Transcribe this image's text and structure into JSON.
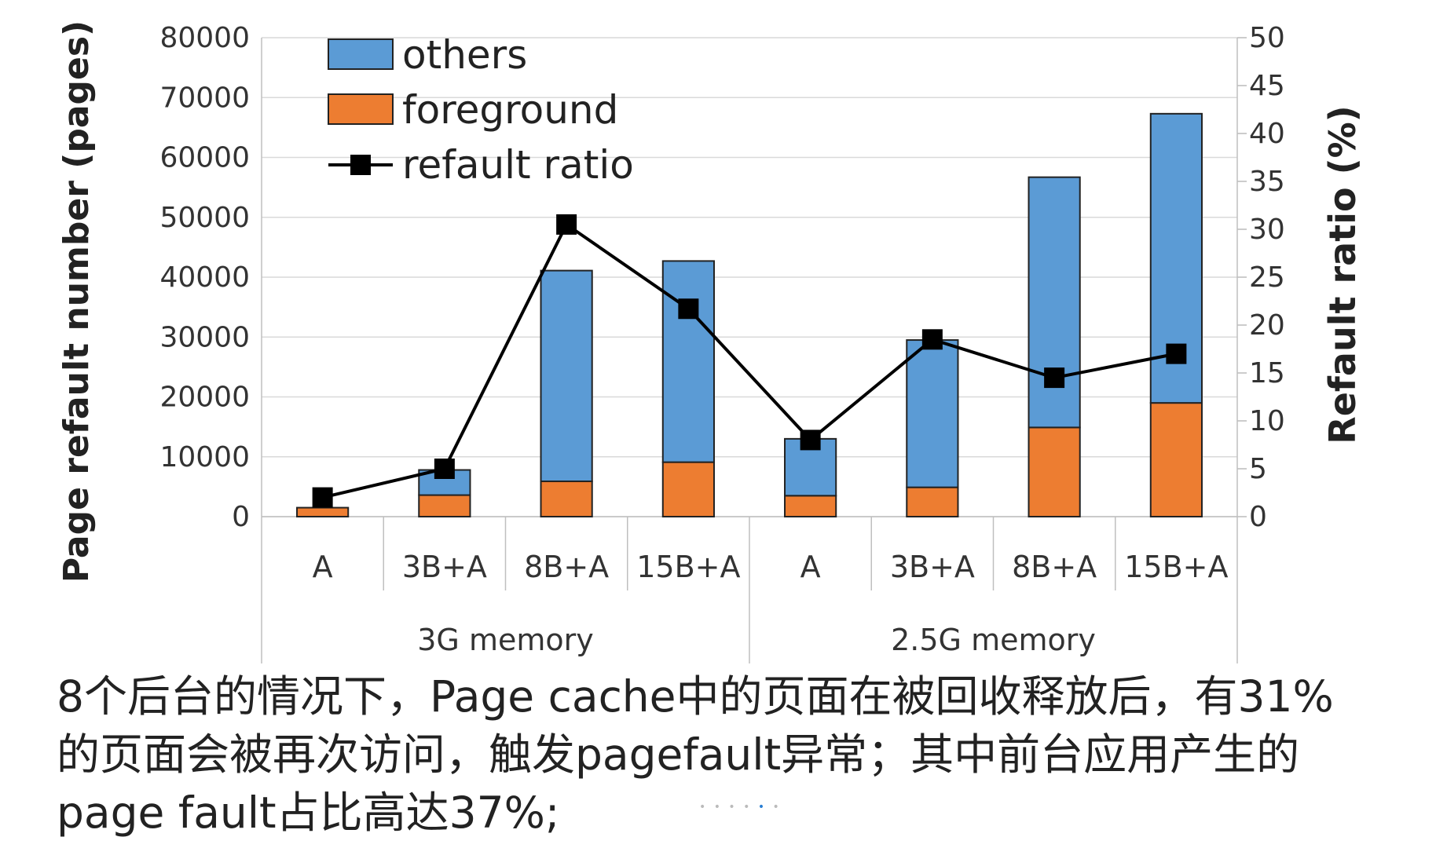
{
  "chart_data": {
    "type": "bar",
    "stacked": true,
    "categories": [
      "A",
      "3B+A",
      "8B+A",
      "15B+A",
      "A",
      "3B+A",
      "8B+A",
      "15B+A"
    ],
    "groups": [
      {
        "label": "3G memory",
        "count": 4
      },
      {
        "label": "2.5G memory",
        "count": 4
      }
    ],
    "series": [
      {
        "name": "foreground",
        "type": "bar",
        "axis": "left",
        "color": "#ed7d31",
        "values": [
          1500,
          3600,
          5900,
          9100,
          3500,
          4900,
          14900,
          19000
        ]
      },
      {
        "name": "others",
        "type": "bar",
        "axis": "left",
        "color": "#5b9bd5",
        "values": [
          0,
          4200,
          35200,
          33600,
          9500,
          24600,
          41800,
          48300
        ]
      },
      {
        "name": "refault ratio",
        "type": "line",
        "axis": "right",
        "color": "#000000",
        "values": [
          2,
          5,
          30.5,
          21.7,
          8,
          18.5,
          14.5,
          17
        ]
      }
    ],
    "legend_order": [
      "others",
      "foreground",
      "refault ratio"
    ],
    "legend_position": "top-left",
    "ylabel": "Page refault number (pages)",
    "y2label": "Refault ratio (%)",
    "ylim": [
      0,
      80000
    ],
    "y2lim": [
      0,
      50
    ],
    "yticks": [
      "0",
      "10000",
      "20000",
      "30000",
      "40000",
      "50000",
      "60000",
      "70000",
      "80000"
    ],
    "y2ticks": [
      "0",
      "5",
      "10",
      "15",
      "20",
      "25",
      "30",
      "35",
      "40",
      "45",
      "50"
    ],
    "grid": true
  },
  "caption": {
    "line1": "8个后台的情况下，Page cache中的页面在被回收释放后，有31%",
    "line2": "的页面会被再次访问，触发pagefault异常；其中前台应用产生的",
    "line3": "page fault占比高达37%;"
  }
}
